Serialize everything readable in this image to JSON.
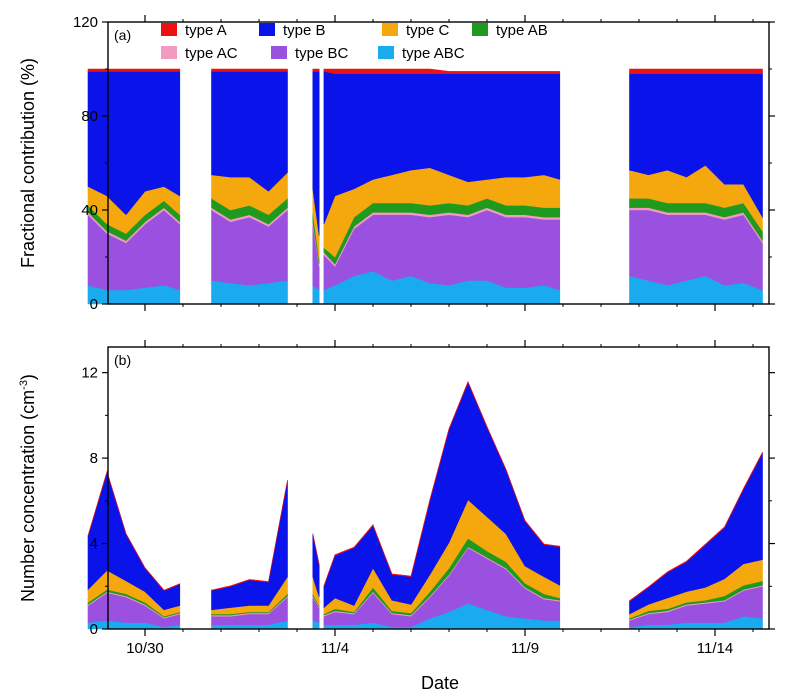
{
  "chart_data": [
    {
      "panel": "(a)",
      "type": "area",
      "stacked": true,
      "ylabel": "Fractional contribution (%)",
      "ylim": [
        0,
        120
      ],
      "yticks": [
        0,
        40,
        80,
        120
      ],
      "xticks": [
        "10/30",
        "11/4",
        "11/9",
        "11/14"
      ],
      "xtick_dates": [
        "2018-10-30",
        "2018-11-04",
        "2018-11-09",
        "2018-11-14"
      ],
      "legend": "top-left",
      "grid": false,
      "data_gaps": [
        [
          "2018-10-30 22:00",
          "2018-10-31 18:00"
        ],
        [
          "2018-11-02 18:00",
          "2018-11-03 10:00"
        ],
        [
          "2018-11-03 14:00",
          "2018-11-03 17:00"
        ],
        [
          "2018-11-09 22:00",
          "2018-11-11 18:00"
        ]
      ],
      "x": [
        "2018-10-28 12:00",
        "2018-10-29 00:00",
        "2018-10-29 12:00",
        "2018-10-30 00:00",
        "2018-10-30 12:00",
        "2018-10-30 22:00",
        "2018-10-31 18:00",
        "2018-11-01 06:00",
        "2018-11-01 18:00",
        "2018-11-02 06:00",
        "2018-11-02 18:00",
        "2018-11-03 10:00",
        "2018-11-03 14:00",
        "2018-11-03 17:00",
        "2018-11-04 00:00",
        "2018-11-04 12:00",
        "2018-11-05 00:00",
        "2018-11-05 12:00",
        "2018-11-06 00:00",
        "2018-11-06 12:00",
        "2018-11-07 00:00",
        "2018-11-07 12:00",
        "2018-11-08 00:00",
        "2018-11-08 12:00",
        "2018-11-09 00:00",
        "2018-11-09 12:00",
        "2018-11-09 22:00",
        "2018-11-11 18:00",
        "2018-11-12 06:00",
        "2018-11-12 18:00",
        "2018-11-13 06:00",
        "2018-11-13 18:00",
        "2018-11-14 06:00",
        "2018-11-14 18:00",
        "2018-11-15 06:00"
      ],
      "series": [
        {
          "name": "type ABC",
          "color": "#1aaaee",
          "values": [
            8,
            6,
            6,
            7,
            8,
            6,
            10,
            9,
            8,
            9,
            10,
            8,
            6,
            6,
            8,
            12,
            14,
            10,
            12,
            9,
            8,
            10,
            10,
            7,
            7,
            8,
            6,
            12,
            10,
            8,
            10,
            12,
            8,
            9,
            6
          ]
        },
        {
          "name": "type BC",
          "color": "#9b51e0",
          "values": [
            30,
            24,
            20,
            27,
            32,
            28,
            30,
            26,
            29,
            24,
            30,
            26,
            10,
            15,
            8,
            20,
            24,
            28,
            26,
            28,
            30,
            27,
            30,
            30,
            30,
            28,
            30,
            28,
            30,
            30,
            28,
            26,
            28,
            29,
            20
          ]
        },
        {
          "name": "type AC",
          "color": "#f29ac0",
          "values": [
            1,
            1,
            1,
            1,
            1,
            1,
            1,
            1,
            1,
            1,
            1,
            1,
            1,
            1,
            1,
            1,
            1,
            1,
            1,
            1,
            1,
            1,
            1,
            1,
            1,
            1,
            1,
            1,
            1,
            1,
            1,
            1,
            1,
            1,
            1
          ]
        },
        {
          "name": "type AB",
          "color": "#1f9a1f",
          "values": [
            3,
            3,
            3,
            3,
            3,
            3,
            4,
            4,
            4,
            4,
            4,
            4,
            2,
            2,
            3,
            4,
            4,
            4,
            4,
            4,
            4,
            4,
            4,
            4,
            4,
            4,
            4,
            4,
            4,
            4,
            4,
            4,
            4,
            4,
            4
          ]
        },
        {
          "name": "type C",
          "color": "#f5a80e",
          "values": [
            8,
            12,
            8,
            10,
            6,
            8,
            10,
            14,
            12,
            10,
            11,
            10,
            10,
            10,
            26,
            12,
            10,
            12,
            14,
            16,
            12,
            10,
            8,
            12,
            12,
            14,
            12,
            12,
            10,
            14,
            11,
            16,
            10,
            8,
            6
          ]
        },
        {
          "name": "type B",
          "color": "#0a14ea",
          "values": [
            49,
            53,
            61,
            51,
            49,
            53,
            44,
            45,
            45,
            51,
            43,
            50,
            70,
            65,
            52,
            49,
            45,
            43,
            41,
            40,
            43,
            46,
            45,
            44,
            44,
            43,
            45,
            41,
            43,
            41,
            44,
            39,
            47,
            47,
            61
          ]
        },
        {
          "name": "type A",
          "color": "#ee1111",
          "values": [
            1,
            1,
            1,
            1,
            1,
            1,
            1,
            1,
            1,
            1,
            1,
            1,
            1,
            1,
            2,
            2,
            2,
            2,
            2,
            2,
            1,
            1,
            1,
            1,
            1,
            1,
            1,
            2,
            2,
            2,
            2,
            2,
            2,
            2,
            2
          ]
        }
      ]
    },
    {
      "panel": "(b)",
      "type": "area",
      "stacked": true,
      "xlabel": "Date",
      "ylabel": "Number concentration (cm",
      "ylabel_sup": "-3",
      "ylabel_close": ")",
      "ylim": [
        0,
        13.2
      ],
      "yticks": [
        0,
        4,
        8,
        12
      ],
      "xticks": [
        "10/30",
        "11/4",
        "11/9",
        "11/14"
      ],
      "xtick_dates": [
        "2018-10-30",
        "2018-11-04",
        "2018-11-09",
        "2018-11-14"
      ],
      "grid": false,
      "data_gaps": [
        [
          "2018-10-30 22:00",
          "2018-10-31 18:00"
        ],
        [
          "2018-11-02 18:00",
          "2018-11-03 10:00"
        ],
        [
          "2018-11-03 14:00",
          "2018-11-03 17:00"
        ],
        [
          "2018-11-09 22:00",
          "2018-11-11 18:00"
        ]
      ],
      "x": [
        "2018-10-28 12:00",
        "2018-10-29 00:00",
        "2018-10-29 12:00",
        "2018-10-30 00:00",
        "2018-10-30 12:00",
        "2018-10-30 22:00",
        "2018-10-31 18:00",
        "2018-11-01 06:00",
        "2018-11-01 18:00",
        "2018-11-02 06:00",
        "2018-11-02 18:00",
        "2018-11-03 10:00",
        "2018-11-03 14:00",
        "2018-11-03 17:00",
        "2018-11-04 00:00",
        "2018-11-04 12:00",
        "2018-11-05 00:00",
        "2018-11-05 12:00",
        "2018-11-06 00:00",
        "2018-11-06 12:00",
        "2018-11-07 00:00",
        "2018-11-07 12:00",
        "2018-11-08 00:00",
        "2018-11-08 12:00",
        "2018-11-09 00:00",
        "2018-11-09 12:00",
        "2018-11-09 22:00",
        "2018-11-11 18:00",
        "2018-11-12 06:00",
        "2018-11-12 18:00",
        "2018-11-13 06:00",
        "2018-11-13 18:00",
        "2018-11-14 06:00",
        "2018-11-14 18:00",
        "2018-11-15 06:00"
      ],
      "series": [
        {
          "name": "type ABC",
          "color": "#1aaaee",
          "values": [
            0.3,
            0.4,
            0.3,
            0.3,
            0.1,
            0.2,
            0.2,
            0.2,
            0.2,
            0.2,
            0.4,
            0.4,
            0.3,
            0.2,
            0.2,
            0.2,
            0.3,
            0.1,
            0.1,
            0.5,
            0.8,
            1.2,
            0.9,
            0.6,
            0.5,
            0.4,
            0.4,
            0.1,
            0.2,
            0.2,
            0.3,
            0.3,
            0.3,
            0.6,
            0.5
          ]
        },
        {
          "name": "type BC",
          "color": "#9b51e0",
          "values": [
            0.8,
            1.3,
            1.2,
            0.8,
            0.4,
            0.5,
            0.4,
            0.4,
            0.5,
            0.5,
            1.1,
            1.1,
            0.7,
            0.4,
            0.6,
            0.5,
            1.4,
            0.6,
            0.5,
            1.0,
            1.7,
            2.6,
            2.4,
            2.2,
            1.4,
            1.0,
            0.9,
            0.3,
            0.5,
            0.6,
            0.8,
            0.9,
            1.0,
            1.2,
            1.5
          ]
        },
        {
          "name": "type AC",
          "color": "#f29ac0",
          "values": [
            0.05,
            0.05,
            0.05,
            0.05,
            0.05,
            0.05,
            0.05,
            0.05,
            0.05,
            0.05,
            0.05,
            0.05,
            0.05,
            0.05,
            0.05,
            0.05,
            0.05,
            0.05,
            0.05,
            0.05,
            0.05,
            0.05,
            0.05,
            0.05,
            0.05,
            0.05,
            0.05,
            0.05,
            0.05,
            0.05,
            0.05,
            0.05,
            0.05,
            0.05,
            0.05
          ]
        },
        {
          "name": "type AB",
          "color": "#1f9a1f",
          "values": [
            0.1,
            0.1,
            0.1,
            0.1,
            0.05,
            0.05,
            0.05,
            0.05,
            0.05,
            0.05,
            0.1,
            0.1,
            0.05,
            0.05,
            0.1,
            0.05,
            0.2,
            0.1,
            0.1,
            0.2,
            0.3,
            0.4,
            0.3,
            0.3,
            0.2,
            0.2,
            0.1,
            0.05,
            0.1,
            0.1,
            0.1,
            0.1,
            0.2,
            0.2,
            0.2
          ]
        },
        {
          "name": "type C",
          "color": "#f5a80e",
          "values": [
            0.6,
            0.9,
            0.6,
            0.5,
            0.3,
            0.3,
            0.2,
            0.3,
            0.3,
            0.3,
            0.8,
            0.8,
            0.4,
            0.3,
            0.5,
            0.3,
            0.9,
            0.5,
            0.4,
            0.8,
            1.2,
            1.8,
            1.6,
            1.3,
            0.8,
            0.8,
            0.6,
            0.2,
            0.3,
            0.5,
            0.5,
            0.6,
            0.8,
            1.0,
            1.0
          ]
        },
        {
          "name": "type B",
          "color": "#0a14ea",
          "values": [
            2.5,
            4.6,
            2.2,
            1.1,
            0.9,
            1.0,
            0.9,
            1.0,
            1.2,
            1.1,
            4.5,
            2.0,
            1.5,
            1.0,
            2.0,
            2.7,
            2.0,
            1.2,
            1.3,
            3.5,
            5.3,
            5.5,
            4.2,
            3.0,
            2.1,
            1.5,
            1.8,
            0.6,
            0.8,
            1.2,
            1.4,
            2.0,
            2.4,
            3.5,
            5.0
          ]
        },
        {
          "name": "type A",
          "color": "#ee1111",
          "values": [
            0.02,
            0.02,
            0.02,
            0.02,
            0.02,
            0.02,
            0.02,
            0.02,
            0.02,
            0.02,
            0.02,
            0.02,
            0.02,
            0.02,
            0.03,
            0.03,
            0.03,
            0.03,
            0.03,
            0.03,
            0.03,
            0.03,
            0.03,
            0.03,
            0.03,
            0.03,
            0.03,
            0.03,
            0.03,
            0.03,
            0.03,
            0.03,
            0.03,
            0.03,
            0.03
          ]
        }
      ]
    }
  ],
  "legend_order": [
    "type A",
    "type B",
    "type C",
    "type AB",
    "type AC",
    "type BC",
    "type ABC"
  ]
}
